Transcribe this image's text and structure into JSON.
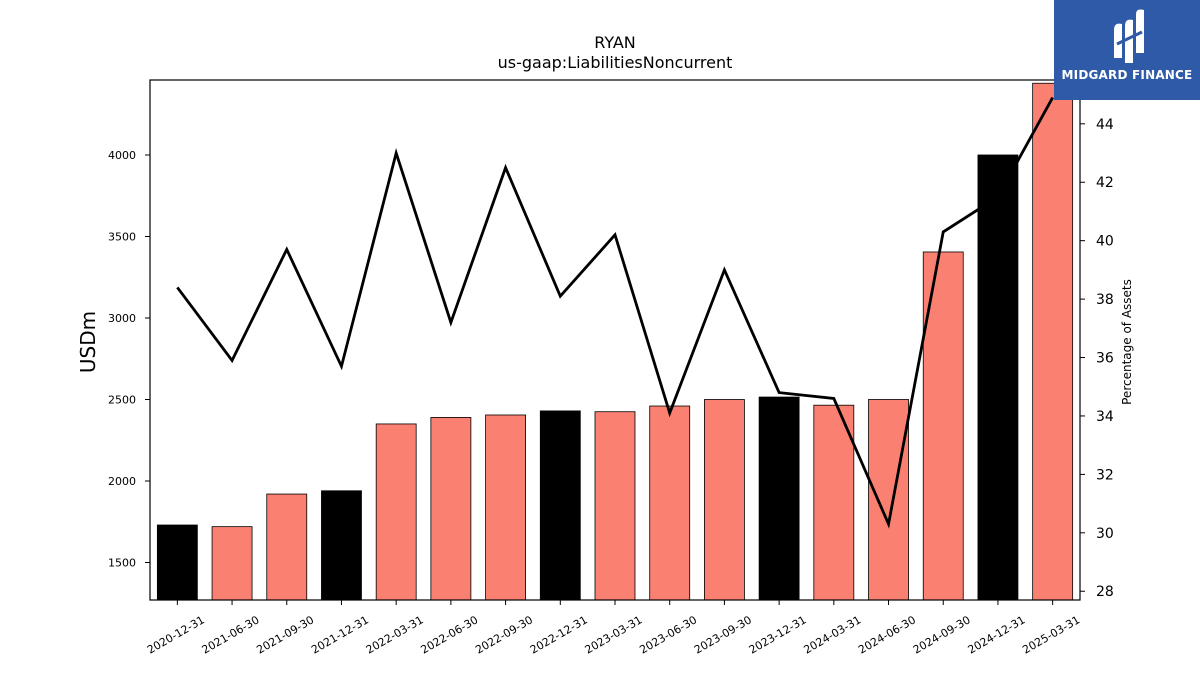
{
  "chart_data": {
    "type": "bar",
    "title": "RYAN",
    "subtitle": "us-gaap:LiabilitiesNoncurrent",
    "ylabel": "USDm",
    "y2label": "Percentage of Assets",
    "categories": [
      "2020-12-31",
      "2021-06-30",
      "2021-09-30",
      "2021-12-31",
      "2022-03-31",
      "2022-06-30",
      "2022-09-30",
      "2022-12-31",
      "2023-03-31",
      "2023-06-30",
      "2023-09-30",
      "2023-12-31",
      "2024-03-31",
      "2024-06-30",
      "2024-09-30",
      "2024-12-31",
      "2025-03-31"
    ],
    "series": [
      {
        "type": "bar",
        "values": [
          1730,
          1720,
          1920,
          1940,
          2350,
          2390,
          2405,
          2430,
          2425,
          2460,
          2500,
          2515,
          2465,
          2500,
          3405,
          4000,
          4440
        ],
        "bar_colors": [
          "#000000",
          "#fa8072",
          "#fa8072",
          "#000000",
          "#fa8072",
          "#fa8072",
          "#fa8072",
          "#000000",
          "#fa8072",
          "#fa8072",
          "#fa8072",
          "#000000",
          "#fa8072",
          "#fa8072",
          "#fa8072",
          "#000000",
          "#fa8072"
        ]
      },
      {
        "type": "line",
        "axis": "right",
        "color": "#000000",
        "values": [
          38.4,
          35.9,
          39.7,
          35.7,
          43.0,
          37.2,
          42.5,
          38.1,
          40.2,
          34.1,
          39.0,
          34.8,
          34.6,
          30.3,
          40.3,
          41.5,
          44.9
        ]
      }
    ],
    "ylim": [
      1270,
      4460
    ],
    "yticks": [
      1500,
      2000,
      2500,
      3000,
      3500,
      4000
    ],
    "y2lim": [
      27.7,
      45.5
    ],
    "y2ticks": [
      28,
      30,
      32,
      34,
      36,
      38,
      40,
      42,
      44
    ],
    "grid": false
  },
  "logo": {
    "text": "MIDGARD FINANCE"
  }
}
